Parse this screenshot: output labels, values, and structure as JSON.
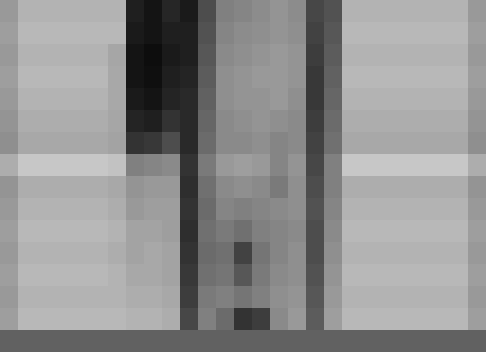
{
  "chart_data": {
    "type": "heatmap",
    "tick_labels": false,
    "color_range": [
      0,
      100
    ],
    "cells": [
      [
        40,
        30,
        30,
        30,
        30,
        30,
        30,
        88,
        92,
        85,
        90,
        70,
        50,
        48,
        45,
        42,
        45,
        72,
        68,
        30,
        30,
        30,
        30,
        30,
        30,
        30,
        40
      ],
      [
        38,
        28,
        28,
        28,
        28,
        28,
        28,
        90,
        92,
        88,
        88,
        68,
        48,
        45,
        44,
        42,
        44,
        74,
        66,
        28,
        28,
        28,
        28,
        28,
        28,
        28,
        38
      ],
      [
        40,
        30,
        30,
        30,
        30,
        30,
        35,
        92,
        95,
        90,
        88,
        66,
        46,
        44,
        42,
        40,
        42,
        76,
        64,
        30,
        30,
        30,
        30,
        30,
        30,
        30,
        40
      ],
      [
        38,
        28,
        28,
        28,
        28,
        28,
        34,
        92,
        94,
        88,
        86,
        64,
        44,
        42,
        40,
        40,
        42,
        78,
        62,
        28,
        28,
        28,
        28,
        28,
        28,
        28,
        38
      ],
      [
        40,
        30,
        30,
        30,
        30,
        30,
        34,
        90,
        92,
        86,
        84,
        62,
        44,
        42,
        42,
        40,
        44,
        78,
        60,
        30,
        30,
        30,
        30,
        30,
        30,
        30,
        40
      ],
      [
        42,
        32,
        32,
        32,
        32,
        32,
        35,
        86,
        88,
        80,
        84,
        60,
        46,
        44,
        42,
        44,
        46,
        76,
        58,
        32,
        32,
        32,
        32,
        32,
        32,
        32,
        42
      ],
      [
        44,
        34,
        34,
        34,
        34,
        34,
        36,
        80,
        78,
        70,
        84,
        58,
        46,
        46,
        44,
        48,
        46,
        74,
        56,
        34,
        34,
        34,
        34,
        34,
        34,
        34,
        44
      ],
      [
        32,
        22,
        22,
        22,
        22,
        22,
        24,
        50,
        48,
        46,
        80,
        52,
        40,
        38,
        40,
        48,
        42,
        72,
        50,
        22,
        22,
        22,
        22,
        22,
        22,
        22,
        32
      ],
      [
        42,
        32,
        32,
        32,
        32,
        32,
        34,
        42,
        40,
        40,
        82,
        56,
        46,
        44,
        46,
        52,
        44,
        70,
        50,
        32,
        32,
        32,
        32,
        32,
        32,
        32,
        42
      ],
      [
        40,
        30,
        30,
        30,
        30,
        30,
        32,
        40,
        38,
        38,
        80,
        58,
        48,
        50,
        48,
        46,
        44,
        68,
        48,
        30,
        30,
        30,
        30,
        30,
        30,
        30,
        40
      ],
      [
        38,
        28,
        28,
        28,
        28,
        28,
        30,
        36,
        36,
        38,
        82,
        56,
        52,
        56,
        50,
        48,
        46,
        70,
        46,
        28,
        28,
        28,
        28,
        28,
        28,
        28,
        38
      ],
      [
        40,
        30,
        30,
        30,
        30,
        30,
        32,
        36,
        34,
        36,
        80,
        58,
        56,
        74,
        54,
        48,
        44,
        70,
        44,
        30,
        30,
        30,
        30,
        30,
        30,
        30,
        40
      ],
      [
        38,
        28,
        28,
        28,
        28,
        28,
        30,
        34,
        34,
        36,
        78,
        56,
        54,
        66,
        52,
        46,
        44,
        68,
        42,
        28,
        28,
        28,
        28,
        28,
        28,
        28,
        38
      ],
      [
        40,
        30,
        30,
        30,
        30,
        30,
        30,
        32,
        32,
        34,
        76,
        52,
        50,
        54,
        50,
        44,
        42,
        66,
        40,
        30,
        30,
        30,
        30,
        30,
        30,
        30,
        40
      ],
      [
        38,
        28,
        28,
        28,
        28,
        28,
        28,
        30,
        30,
        32,
        72,
        50,
        58,
        80,
        76,
        46,
        40,
        64,
        38,
        28,
        28,
        28,
        28,
        28,
        28,
        28,
        38
      ],
      [
        62,
        62,
        62,
        62,
        62,
        62,
        62,
        62,
        62,
        62,
        62,
        62,
        62,
        62,
        62,
        62,
        62,
        62,
        62,
        62,
        62,
        62,
        62,
        62,
        62,
        62,
        62
      ]
    ]
  }
}
